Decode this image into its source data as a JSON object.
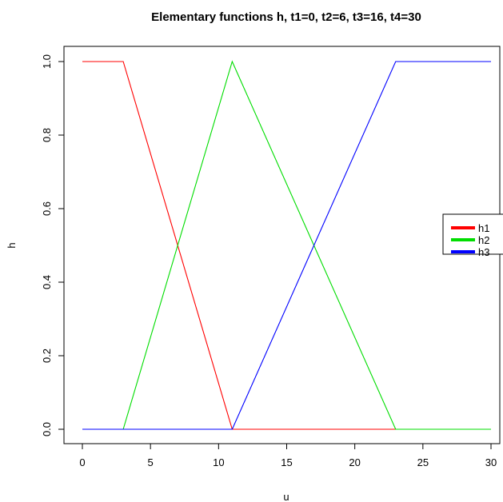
{
  "chart_data": {
    "type": "line",
    "title": "Elementary functions h, t1=0, t2=6, t3=16, t4=30",
    "xlabel": "u",
    "ylabel": "h",
    "xlim": [
      0,
      30
    ],
    "ylim": [
      0,
      1
    ],
    "x_ticks": [
      "0",
      "5",
      "10",
      "15",
      "20",
      "25",
      "30"
    ],
    "y_ticks": [
      "0.0",
      "0.2",
      "0.4",
      "0.6",
      "0.8",
      "1.0"
    ],
    "grid": false,
    "legend_position": "right",
    "series": [
      {
        "name": "h1",
        "color": "#ff0000",
        "x": [
          0,
          3,
          11,
          23,
          30
        ],
        "y": [
          1,
          1,
          0,
          0,
          0
        ]
      },
      {
        "name": "h2",
        "color": "#00dd00",
        "x": [
          0,
          3,
          11,
          23,
          30
        ],
        "y": [
          0,
          0,
          1,
          0,
          0
        ]
      },
      {
        "name": "h3",
        "color": "#0000ff",
        "x": [
          0,
          3,
          11,
          23,
          30
        ],
        "y": [
          0,
          0,
          0,
          1,
          1
        ]
      }
    ]
  }
}
